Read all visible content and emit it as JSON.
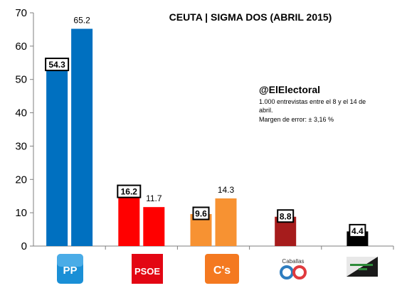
{
  "chart_data": {
    "type": "bar",
    "title": "CEUTA | SIGMA DOS (ABRIL 2015)",
    "annotation": {
      "handle": "@ElElectoral",
      "lines": [
        "1.000 entrevistas entre el 8 y el 14 de",
        "abril.",
        "Margen de error: ± 3,16 %"
      ]
    },
    "ylim": [
      0,
      70
    ],
    "yticks": [
      "0",
      "10",
      "20",
      "30",
      "40",
      "50",
      "60",
      "70"
    ],
    "grid": false,
    "categories": [
      "PP",
      "PSOE",
      "C's",
      "Caballas",
      "MDyC"
    ],
    "bars": [
      {
        "party": "PP",
        "value": 54.3,
        "label": "54.3",
        "boxed": true,
        "color": "#0070c0"
      },
      {
        "party": "PP",
        "value": 65.2,
        "label": "65.2",
        "boxed": false,
        "color": "#0070c0"
      },
      {
        "party": "PSOE",
        "value": 16.2,
        "label": "16.2",
        "boxed": true,
        "color": "#ff0000"
      },
      {
        "party": "PSOE",
        "value": 11.7,
        "label": "11.7",
        "boxed": false,
        "color": "#ff0000"
      },
      {
        "party": "C's",
        "value": 9.6,
        "label": "9.6",
        "boxed": true,
        "color": "#f79232"
      },
      {
        "party": "C's",
        "value": 14.3,
        "label": "14.3",
        "boxed": false,
        "color": "#f79232"
      },
      {
        "party": "Caballas",
        "value": 8.8,
        "label": "8.8",
        "boxed": true,
        "color": "#a61c1c"
      },
      {
        "party": "MDyC",
        "value": 4.4,
        "label": "4.4",
        "boxed": true,
        "color": "#000000"
      }
    ],
    "logos": [
      {
        "party": "PP",
        "icon": "pp-logo-icon",
        "text": "PP"
      },
      {
        "party": "PSOE",
        "icon": "psoe-logo-icon",
        "text": "PSOE"
      },
      {
        "party": "C's",
        "icon": "ciudadanos-logo-icon",
        "text": "C's"
      },
      {
        "party": "Caballas",
        "icon": "caballas-logo-icon",
        "text": "Caballas"
      },
      {
        "party": "MDyC",
        "icon": "mdyc-logo-icon",
        "text": ""
      }
    ]
  }
}
